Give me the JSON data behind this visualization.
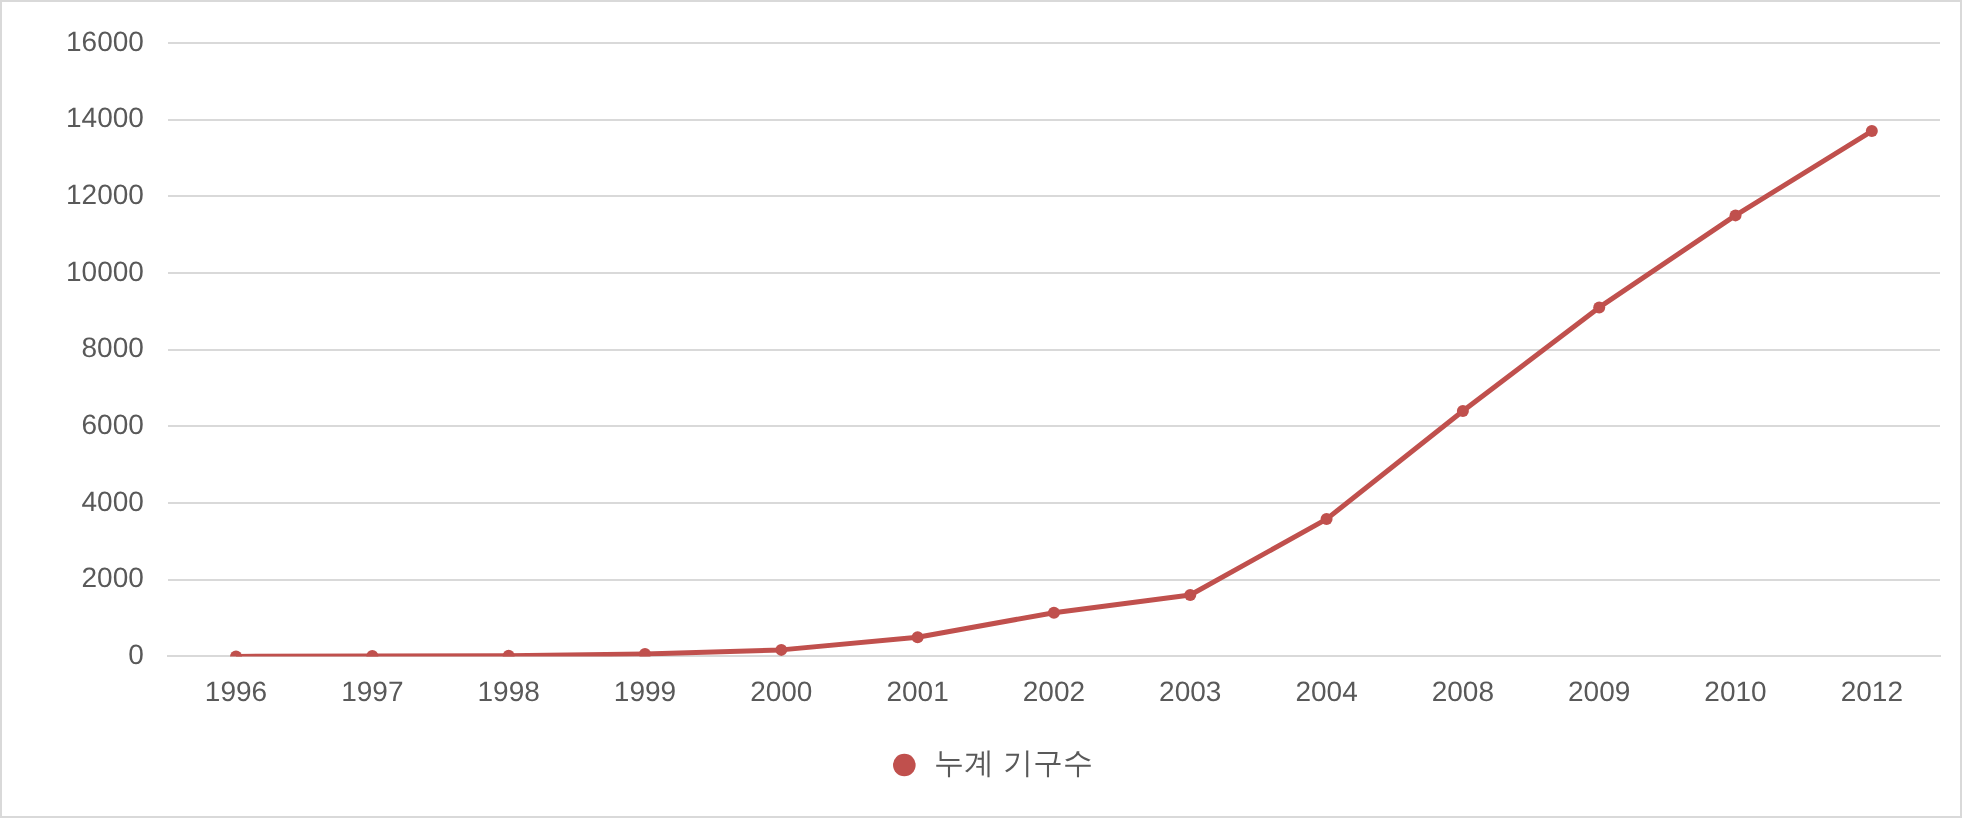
{
  "chart_data": {
    "type": "line",
    "categories": [
      "1996",
      "1997",
      "1998",
      "1999",
      "2000",
      "2001",
      "2002",
      "2003",
      "2004",
      "2008",
      "2009",
      "2010",
      "2012"
    ],
    "series": [
      {
        "name": "누계 기구수",
        "color": "#c0504d",
        "values": [
          0,
          10,
          20,
          60,
          170,
          500,
          1140,
          1600,
          3580,
          6400,
          9100,
          11500,
          13700
        ]
      }
    ],
    "ylim": [
      0,
      16000
    ],
    "yticks": [
      0,
      2000,
      4000,
      6000,
      8000,
      10000,
      12000,
      14000,
      16000
    ],
    "grid": "y",
    "legend": "bottom",
    "marker": "circle",
    "line_style": "solid"
  }
}
